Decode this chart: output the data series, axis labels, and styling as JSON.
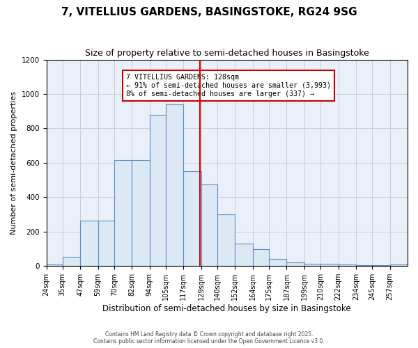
{
  "title": "7, VITELLIUS GARDENS, BASINGSTOKE, RG24 9SG",
  "subtitle": "Size of property relative to semi-detached houses in Basingstoke",
  "xlabel": "Distribution of semi-detached houses by size in Basingstoke",
  "ylabel": "Number of semi-detached properties",
  "bin_edges": [
    24,
    35,
    47,
    59,
    70,
    82,
    94,
    105,
    117,
    129,
    140,
    152,
    164,
    175,
    187,
    199,
    210,
    222,
    234,
    245,
    257,
    269
  ],
  "counts": [
    10,
    55,
    265,
    265,
    615,
    615,
    880,
    940,
    550,
    475,
    300,
    130,
    100,
    40,
    20,
    15,
    12,
    10,
    5,
    3,
    8
  ],
  "tick_labels": [
    "24sqm",
    "35sqm",
    "47sqm",
    "59sqm",
    "70sqm",
    "82sqm",
    "94sqm",
    "105sqm",
    "117sqm",
    "129sqm",
    "140sqm",
    "152sqm",
    "164sqm",
    "175sqm",
    "187sqm",
    "199sqm",
    "210sqm",
    "222sqm",
    "234sqm",
    "245sqm",
    "257sqm"
  ],
  "bar_facecolor": "#dce9f5",
  "bar_edgecolor": "#5b8cc8",
  "vline_x": 128,
  "vline_color": "#cc0000",
  "annotation_title": "7 VITELLIUS GARDENS: 128sqm",
  "annotation_line1": "← 91% of semi-detached houses are smaller (3,993)",
  "annotation_line2": "8% of semi-detached houses are larger (337) →",
  "annotation_box_edgecolor": "#cc0000",
  "ylim": [
    0,
    1200
  ],
  "yticks": [
    0,
    200,
    400,
    600,
    800,
    1000,
    1200
  ],
  "grid_color": "#cccccc",
  "bg_color": "#eaf0fa",
  "footnote_line1": "Contains HM Land Registry data © Crown copyright and database right 2025.",
  "footnote_line2": "Contains public sector information licensed under the Open Government Licence v3.0."
}
